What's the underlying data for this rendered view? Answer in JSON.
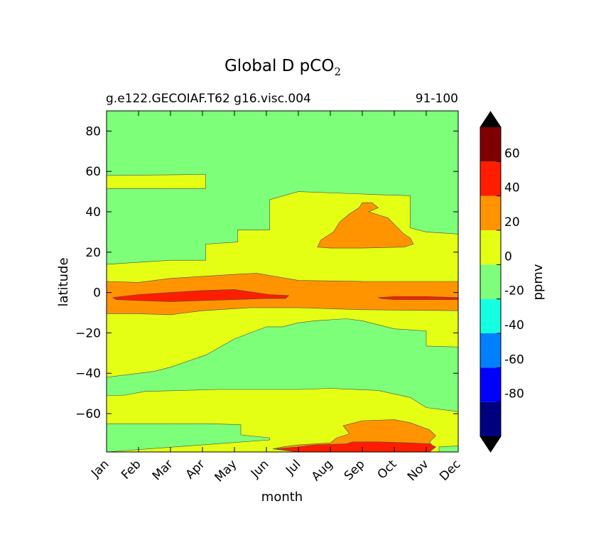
{
  "chart_data": {
    "type": "contour",
    "title_main": "Global D pCO",
    "title_sub": "2",
    "subtitle_left": "g.e122.GECOIAF.T62 g16.visc.004",
    "subtitle_right": "91-100",
    "xlabel": "month",
    "ylabel": "latitude",
    "x_ticks": [
      "Jan",
      "Feb",
      "Mar",
      "Apr",
      "May",
      "Jun",
      "Jul",
      "Aug",
      "Sep",
      "Oct",
      "Nov",
      "Dec"
    ],
    "xlim": [
      1,
      12
    ],
    "ylim": [
      -79,
      90
    ],
    "y_ticks": [
      80,
      60,
      40,
      20,
      0,
      -20,
      -40,
      -60
    ],
    "y_tick_labels": [
      "80",
      "60",
      "40",
      "20",
      "0",
      "−20",
      "−40",
      "−60"
    ],
    "colorbar": {
      "label": "ppmv",
      "levels": [
        -100,
        -80,
        -60,
        -40,
        -20,
        0,
        20,
        40,
        60,
        80
      ],
      "tick_labels": [
        "60",
        "40",
        "20",
        "0",
        "-20",
        "-40",
        "-60",
        "-80"
      ],
      "tick_values": [
        60,
        40,
        20,
        0,
        -20,
        -40,
        -60,
        -80
      ],
      "colors": [
        "#00007f",
        "#0000ff",
        "#0080ff",
        "#15ffe1",
        "#7dff7a",
        "#e4ff13",
        "#ff9400",
        "#ff1d00",
        "#7f0000"
      ],
      "extend_low": "#000000",
      "extend_high": "#000000"
    },
    "regions": [
      {
        "name": "base",
        "level": "-20 to 0",
        "color": "#7dff7a"
      },
      {
        "name": "nh-60N",
        "level": "0 to 20",
        "color": "#e4ff13",
        "polygon": [
          [
            1,
            58
          ],
          [
            4.1,
            58.5
          ],
          [
            4.1,
            51.5
          ],
          [
            1,
            51.5
          ]
        ]
      },
      {
        "name": "tropics",
        "level": "0 to 20",
        "color": "#e4ff13",
        "polygon": [
          [
            1,
            14
          ],
          [
            3,
            16
          ],
          [
            4.1,
            16
          ],
          [
            4.1,
            24
          ],
          [
            5.1,
            25
          ],
          [
            5.1,
            31
          ],
          [
            6.1,
            31
          ],
          [
            6.1,
            46
          ],
          [
            7,
            50
          ],
          [
            9.5,
            48.5
          ],
          [
            10.5,
            48
          ],
          [
            10.5,
            32
          ],
          [
            11,
            30
          ],
          [
            12,
            29
          ],
          [
            12,
            -27
          ],
          [
            11,
            -26.5
          ],
          [
            11,
            -19
          ],
          [
            10,
            -18
          ],
          [
            9,
            -14
          ],
          [
            8.5,
            -13
          ],
          [
            7.5,
            -14
          ],
          [
            7,
            -15
          ],
          [
            6.5,
            -17
          ],
          [
            6,
            -17
          ],
          [
            5,
            -23
          ],
          [
            4.1,
            -31
          ],
          [
            3,
            -37
          ],
          [
            2.5,
            -39
          ],
          [
            1,
            -42
          ]
        ]
      },
      {
        "name": "sh-mid",
        "level": "0 to 20",
        "color": "#e4ff13",
        "polygon": [
          [
            1,
            -51
          ],
          [
            1.5,
            -51
          ],
          [
            2.2,
            -49
          ],
          [
            4.5,
            -48
          ],
          [
            7,
            -48
          ],
          [
            8,
            -47.5
          ],
          [
            9.5,
            -48.5
          ],
          [
            10.5,
            -52
          ],
          [
            11,
            -57
          ],
          [
            12,
            -59
          ],
          [
            12,
            -79
          ],
          [
            1,
            -79
          ]
        ]
      },
      {
        "name": "sh-low",
        "level": "-20 to 0",
        "color": "#7dff7a",
        "polygon": [
          [
            1,
            -65
          ],
          [
            2.2,
            -65
          ],
          [
            3.6,
            -65
          ],
          [
            4.2,
            -65
          ],
          [
            5.2,
            -65.5
          ],
          [
            5.2,
            -70.5
          ],
          [
            6.1,
            -72
          ],
          [
            6.1,
            -73
          ],
          [
            1,
            -79
          ]
        ]
      },
      {
        "name": "sh-bottom",
        "level": "-20 to 0",
        "color": "#7dff7a",
        "polygon": [
          [
            11.4,
            -76.5
          ],
          [
            12,
            -76
          ],
          [
            12,
            -79
          ],
          [
            11.4,
            -79
          ]
        ]
      },
      {
        "name": "eq-band",
        "level": "20 to 40",
        "color": "#ff9400",
        "polygon": [
          [
            1,
            5.5
          ],
          [
            2,
            5
          ],
          [
            3,
            7
          ],
          [
            4,
            8
          ],
          [
            5,
            9
          ],
          [
            5.7,
            9.5
          ],
          [
            7,
            6
          ],
          [
            9,
            5.5
          ],
          [
            12,
            5.5
          ],
          [
            12,
            -9
          ],
          [
            9,
            -8.5
          ],
          [
            7,
            -7.5
          ],
          [
            5.5,
            -7.5
          ],
          [
            4,
            -9
          ],
          [
            3,
            -11
          ],
          [
            2,
            -10.5
          ],
          [
            1,
            -10.5
          ]
        ]
      },
      {
        "name": "eq-core-west",
        "level": "40 to 60",
        "color": "#ff1d00",
        "polygon": [
          [
            1.2,
            -2.5
          ],
          [
            2,
            -1
          ],
          [
            3,
            0
          ],
          [
            4,
            1
          ],
          [
            5,
            1.5
          ],
          [
            6.1,
            -1
          ],
          [
            6.7,
            -1.5
          ],
          [
            6.6,
            -3
          ],
          [
            6,
            -3
          ],
          [
            5,
            -3.5
          ],
          [
            4,
            -4
          ],
          [
            3,
            -4.5
          ],
          [
            2,
            -4
          ],
          [
            1.3,
            -3.5
          ]
        ]
      },
      {
        "name": "eq-core-east",
        "level": "40 to 60",
        "color": "#ff1d00",
        "polygon": [
          [
            9.5,
            -2.5
          ],
          [
            10,
            -2
          ],
          [
            11,
            -2
          ],
          [
            12,
            -2.5
          ],
          [
            12,
            -3.5
          ],
          [
            11,
            -3.5
          ],
          [
            10,
            -3.5
          ],
          [
            9.6,
            -3
          ]
        ]
      },
      {
        "name": "nh-blob",
        "level": "20 to 40",
        "color": "#ff9400",
        "polygon": [
          [
            7.6,
            22.5
          ],
          [
            7.7,
            26
          ],
          [
            8.1,
            30
          ],
          [
            8.3,
            35
          ],
          [
            8.6,
            39
          ],
          [
            8.9,
            42
          ],
          [
            9,
            44.5
          ],
          [
            9.3,
            44.5
          ],
          [
            9.5,
            42
          ],
          [
            9.2,
            40
          ],
          [
            9.8,
            37
          ],
          [
            10.3,
            29
          ],
          [
            10.5,
            27
          ],
          [
            10.6,
            24
          ],
          [
            10.3,
            22.5
          ],
          [
            9,
            22
          ],
          [
            8,
            22
          ]
        ]
      },
      {
        "name": "sh-blob",
        "level": "20 to 40",
        "color": "#ff9400",
        "polygon": [
          [
            6.2,
            -77.5
          ],
          [
            6.5,
            -76.5
          ],
          [
            7,
            -75.5
          ],
          [
            8,
            -74.5
          ],
          [
            8.2,
            -72
          ],
          [
            8.6,
            -70
          ],
          [
            8.4,
            -66
          ],
          [
            9,
            -63.5
          ],
          [
            10,
            -63
          ],
          [
            10.5,
            -64.5
          ],
          [
            11.1,
            -68
          ],
          [
            11.3,
            -71
          ],
          [
            11.1,
            -74
          ],
          [
            11.2,
            -76
          ],
          [
            10.8,
            -79
          ],
          [
            7,
            -79
          ]
        ]
      },
      {
        "name": "sh-core",
        "level": "40 to 60",
        "color": "#ff1d00",
        "polygon": [
          [
            6.3,
            -77.5
          ],
          [
            7,
            -76.5
          ],
          [
            7.5,
            -75.5
          ],
          [
            8.5,
            -75
          ],
          [
            8.7,
            -74
          ],
          [
            9.5,
            -74
          ],
          [
            10.5,
            -74.5
          ],
          [
            11.1,
            -75
          ],
          [
            11.3,
            -76.5
          ],
          [
            11.1,
            -79
          ],
          [
            7,
            -79
          ]
        ]
      }
    ]
  }
}
